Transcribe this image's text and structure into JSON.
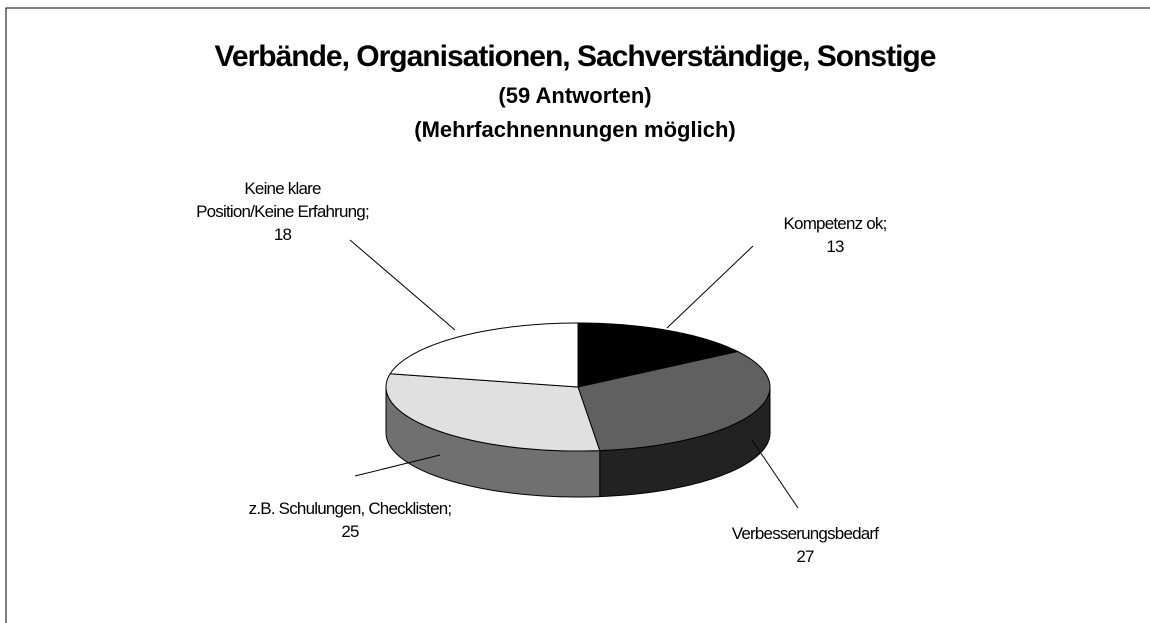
{
  "chart_data": {
    "type": "pie3d",
    "title": "Verbände, Organisationen, Sachverständige, Sonstige",
    "subtitle": [
      "(59 Antworten)",
      "(Mehrfachnennungen möglich)"
    ],
    "categories": [
      "Kompetenz ok;",
      "Verbesserungsbedarf",
      "z.B. Schulungen, Checklisten;",
      "Keine klare Position/Keine Erfahrung;"
    ],
    "values": [
      13,
      27,
      25,
      18
    ],
    "colors": [
      "#000000",
      "#606060",
      "#e0e0e0",
      "#ffffff"
    ]
  }
}
